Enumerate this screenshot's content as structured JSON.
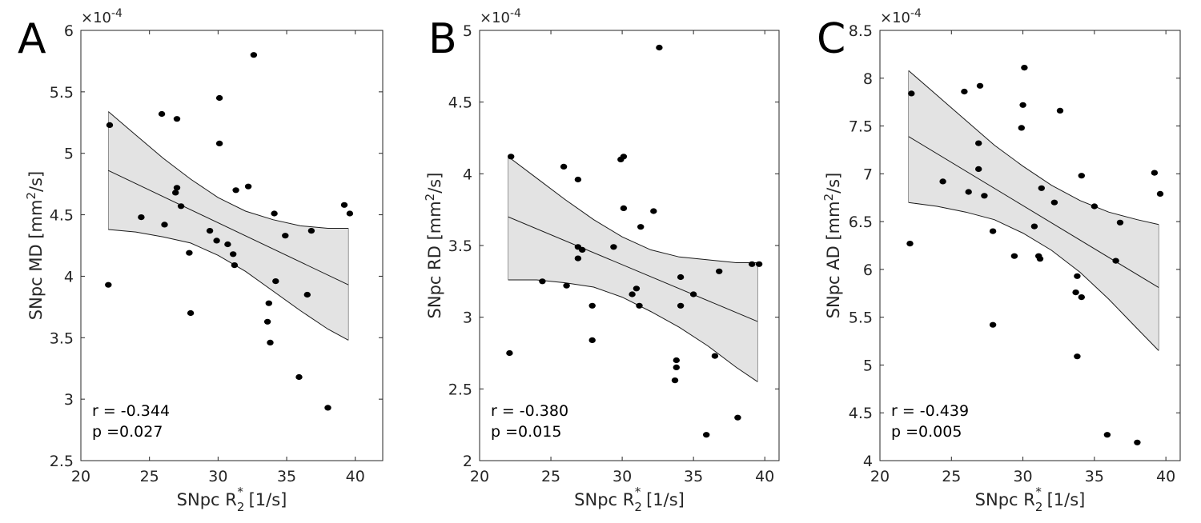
{
  "chart_data": [
    {
      "type": "scatter",
      "panel_label": "A",
      "ylabel_main": "SNpc MD [mm",
      "ylabel_sup": "2",
      "ylabel_tail": "/s]",
      "xlabel_main": "SNpc R",
      "xlabel_sub": "2",
      "xlabel_sup": "*",
      "xlabel_tail": " [1/s]",
      "exponent_label": "×10",
      "exponent_value": "-4",
      "xlim": [
        20,
        42
      ],
      "ylim": [
        2.5,
        6
      ],
      "xticks": [
        20,
        25,
        30,
        35,
        40
      ],
      "yticks": [
        2.5,
        3,
        3.5,
        4,
        4.5,
        5,
        5.5,
        6
      ],
      "ytick_labels": [
        "2.5",
        "3",
        "3.5",
        "4",
        "4.5",
        "5",
        "5.5",
        "6"
      ],
      "stat_r": "r = -0.344",
      "stat_p": "p =0.027",
      "fit": {
        "x": [
          22,
          39.5
        ],
        "y": [
          4.86,
          3.93
        ]
      },
      "band_upper": {
        "x": [
          22,
          24,
          26,
          28,
          30,
          32,
          34,
          36,
          38,
          39.5
        ],
        "y": [
          5.34,
          5.15,
          4.96,
          4.79,
          4.64,
          4.53,
          4.46,
          4.41,
          4.39,
          4.39
        ]
      },
      "band_lower": {
        "x": [
          22,
          24,
          26,
          28,
          30,
          32,
          34,
          36,
          38,
          39.5
        ],
        "y": [
          4.38,
          4.36,
          4.32,
          4.27,
          4.17,
          4.04,
          3.88,
          3.72,
          3.57,
          3.48
        ]
      },
      "points": {
        "x": [
          22.0,
          22.1,
          24.4,
          25.9,
          26.1,
          26.9,
          27.0,
          27.0,
          27.3,
          27.9,
          28.0,
          29.4,
          29.9,
          30.1,
          30.1,
          30.7,
          31.1,
          31.2,
          31.3,
          32.2,
          32.6,
          33.6,
          33.7,
          33.8,
          34.1,
          34.2,
          34.9,
          35.9,
          36.5,
          36.8,
          38.0,
          39.2,
          39.6
        ],
        "y": [
          3.93,
          5.23,
          4.48,
          5.32,
          4.42,
          4.68,
          4.72,
          5.28,
          4.57,
          4.19,
          3.7,
          4.37,
          4.29,
          5.08,
          5.45,
          4.26,
          4.18,
          4.09,
          4.7,
          4.73,
          5.8,
          3.63,
          3.78,
          3.46,
          4.51,
          3.96,
          4.33,
          3.18,
          3.85,
          4.37,
          2.93,
          4.58,
          4.51
        ]
      }
    },
    {
      "type": "scatter",
      "panel_label": "B",
      "ylabel_main": "SNpc RD [mm",
      "ylabel_sup": "2",
      "ylabel_tail": "/s]",
      "xlabel_main": "SNpc R",
      "xlabel_sub": "2",
      "xlabel_sup": "*",
      "xlabel_tail": " [1/s]",
      "exponent_label": "×10",
      "exponent_value": "-4",
      "xlim": [
        20,
        41
      ],
      "ylim": [
        2,
        5
      ],
      "xticks": [
        20,
        25,
        30,
        35,
        40
      ],
      "yticks": [
        2,
        2.5,
        3,
        3.5,
        4,
        4.5,
        5
      ],
      "ytick_labels": [
        "2",
        "2.5",
        "3",
        "3.5",
        "4",
        "4.5",
        "5"
      ],
      "stat_r": "r = -0.380",
      "stat_p": "p =0.015",
      "fit": {
        "x": [
          22,
          39.5
        ],
        "y": [
          3.7,
          2.97
        ]
      },
      "band_upper": {
        "x": [
          22,
          24,
          26,
          28,
          30,
          32,
          34,
          36,
          38,
          39.5
        ],
        "y": [
          4.12,
          3.97,
          3.82,
          3.68,
          3.56,
          3.47,
          3.42,
          3.4,
          3.38,
          3.38
        ]
      },
      "band_lower": {
        "x": [
          22,
          24,
          26,
          28,
          30,
          32,
          34,
          36,
          38,
          39.5
        ],
        "y": [
          3.26,
          3.26,
          3.24,
          3.21,
          3.14,
          3.04,
          2.93,
          2.8,
          2.65,
          2.55
        ]
      },
      "points": {
        "x": [
          22.1,
          22.2,
          24.4,
          25.9,
          26.1,
          26.9,
          26.9,
          26.9,
          27.2,
          27.9,
          27.9,
          29.4,
          29.9,
          30.1,
          30.1,
          30.7,
          31.0,
          31.2,
          31.3,
          32.2,
          32.6,
          33.7,
          33.8,
          33.8,
          34.1,
          34.1,
          35.0,
          35.9,
          36.5,
          36.8,
          38.1,
          39.1,
          39.6
        ],
        "y": [
          2.75,
          4.12,
          3.25,
          4.05,
          3.22,
          3.49,
          3.41,
          3.96,
          3.47,
          3.08,
          2.84,
          3.49,
          4.1,
          4.12,
          3.76,
          3.16,
          3.2,
          3.08,
          3.63,
          3.74,
          4.88,
          2.56,
          2.7,
          2.65,
          3.28,
          3.08,
          3.16,
          2.18,
          2.73,
          3.32,
          2.3,
          3.37,
          3.37
        ]
      }
    },
    {
      "type": "scatter",
      "panel_label": "C",
      "ylabel_main": "SNpc AD [mm",
      "ylabel_sup": "2",
      "ylabel_tail": "/s]",
      "xlabel_main": "SNpc R",
      "xlabel_sub": "2",
      "xlabel_sup": "*",
      "xlabel_tail": " [1/s]",
      "exponent_label": "×10",
      "exponent_value": "-4",
      "xlim": [
        20,
        41
      ],
      "ylim": [
        4,
        8.5
      ],
      "xticks": [
        20,
        25,
        30,
        35,
        40
      ],
      "yticks": [
        4,
        4.5,
        5,
        5.5,
        6,
        6.5,
        7,
        7.5,
        8,
        8.5
      ],
      "ytick_labels": [
        "4",
        "4.5",
        "5",
        "5.5",
        "6",
        "6.5",
        "7",
        "7.5",
        "8",
        "8.5"
      ],
      "stat_r": "r = -0.439",
      "stat_p": "p =0.005",
      "fit": {
        "x": [
          22,
          39.5
        ],
        "y": [
          7.39,
          5.81
        ]
      },
      "band_upper": {
        "x": [
          22,
          24,
          26,
          28,
          30,
          32,
          34,
          36,
          38,
          39.5
        ],
        "y": [
          8.08,
          7.82,
          7.56,
          7.3,
          7.08,
          6.88,
          6.72,
          6.6,
          6.52,
          6.47
        ]
      },
      "band_lower": {
        "x": [
          22,
          24,
          26,
          28,
          30,
          32,
          34,
          36,
          38,
          39.5
        ],
        "y": [
          6.7,
          6.66,
          6.6,
          6.52,
          6.38,
          6.2,
          5.97,
          5.69,
          5.38,
          5.15
        ]
      },
      "points": {
        "x": [
          22.1,
          22.2,
          24.4,
          25.9,
          26.2,
          26.9,
          26.9,
          27.0,
          27.3,
          27.9,
          27.9,
          29.4,
          29.9,
          30.0,
          30.1,
          30.8,
          31.1,
          31.2,
          31.3,
          32.2,
          32.6,
          33.7,
          33.8,
          33.8,
          34.1,
          34.1,
          35.0,
          35.9,
          36.5,
          36.8,
          38.0,
          39.2,
          39.6
        ],
        "y": [
          6.27,
          7.84,
          6.92,
          7.86,
          6.81,
          7.32,
          7.05,
          7.92,
          6.77,
          6.4,
          5.42,
          6.14,
          7.48,
          7.72,
          8.11,
          6.45,
          6.14,
          6.11,
          6.85,
          6.7,
          7.66,
          5.76,
          5.93,
          5.09,
          6.98,
          5.71,
          6.66,
          4.27,
          6.09,
          6.49,
          4.19,
          7.01,
          6.79
        ]
      }
    }
  ]
}
